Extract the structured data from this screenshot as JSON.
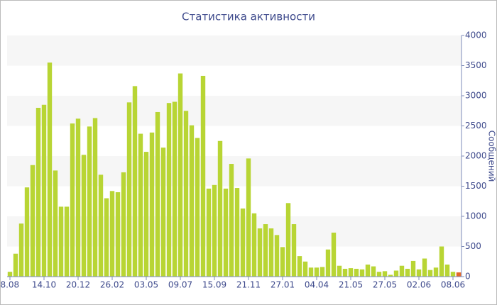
{
  "chart_data": {
    "type": "bar",
    "title": "Статистика активности",
    "y_label": "Сообщений",
    "categories": [
      "08.08",
      null,
      null,
      null,
      null,
      null,
      "14.10",
      null,
      null,
      null,
      null,
      null,
      "20.12",
      null,
      null,
      null,
      null,
      null,
      "26.02",
      null,
      null,
      null,
      null,
      null,
      "03.05",
      null,
      null,
      null,
      null,
      null,
      "09.07",
      null,
      null,
      null,
      null,
      null,
      "15.09",
      null,
      null,
      null,
      null,
      null,
      "21.11",
      null,
      null,
      null,
      null,
      null,
      "27.01",
      null,
      null,
      null,
      null,
      null,
      "04.04",
      null,
      null,
      null,
      null,
      null,
      "21.05",
      null,
      null,
      null,
      null,
      null,
      "27.05",
      null,
      null,
      null,
      null,
      null,
      "02.06",
      null,
      null,
      null,
      null,
      null,
      "08.06",
      null
    ],
    "values": [
      80,
      380,
      880,
      1480,
      1850,
      2800,
      2850,
      3550,
      1760,
      1160,
      1160,
      2540,
      2620,
      2020,
      2490,
      2630,
      1690,
      1300,
      1420,
      1400,
      1730,
      2890,
      3160,
      2370,
      2070,
      2390,
      2730,
      2140,
      2880,
      2900,
      3370,
      2750,
      2510,
      2300,
      3330,
      1460,
      1520,
      2250,
      1460,
      1870,
      1470,
      1130,
      1960,
      1050,
      800,
      870,
      800,
      690,
      490,
      1220,
      870,
      340,
      250,
      150,
      150,
      160,
      450,
      730,
      180,
      130,
      140,
      130,
      120,
      200,
      170,
      80,
      90,
      30,
      100,
      180,
      130,
      260,
      120,
      300,
      110,
      150,
      500,
      200,
      80,
      70
    ],
    "color": "#b8d534",
    "last_color": "#e2672b",
    "ylim": [
      0,
      4000
    ],
    "yticks": [
      0,
      500,
      1000,
      1500,
      2000,
      2500,
      3000,
      3500,
      4000
    ],
    "bands": true
  }
}
